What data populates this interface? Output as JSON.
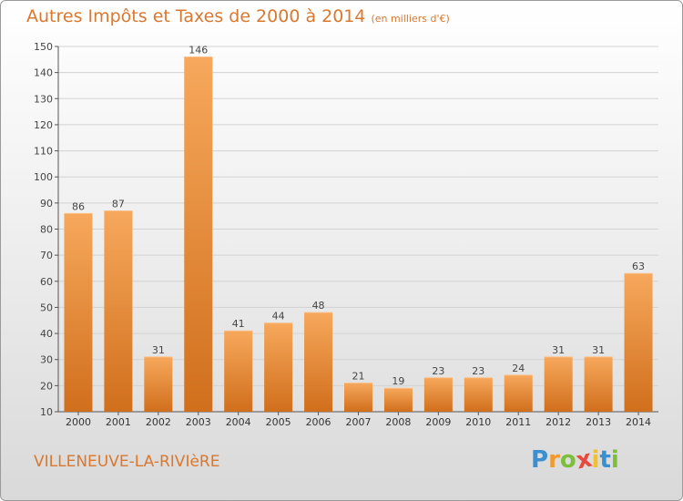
{
  "header": {
    "title": "Autres Impôts et Taxes de 2000 à 2014",
    "subtitle": "(en milliers d'€)"
  },
  "footer": {
    "city": "VILLENEUVE-LA-RIVIèRE",
    "logo_letters": [
      "P",
      "r",
      "o",
      "x",
      "i",
      "t",
      "i"
    ],
    "logo_colors": [
      "#3a8fd0",
      "#f29a2e",
      "#7dbf3c",
      "#e8493c",
      "#f2c02e",
      "#3a8fd0",
      "#7dbf3c"
    ]
  },
  "colors": {
    "bar_light": "#f7a85c",
    "bar_dark": "#d06f1c",
    "text": "#d9782e"
  },
  "chart_data": {
    "type": "bar",
    "title": "Autres Impôts et Taxes de 2000 à 2014",
    "subtitle": "(en milliers d'€)",
    "categories": [
      "2000",
      "2001",
      "2002",
      "2003",
      "2004",
      "2005",
      "2006",
      "2007",
      "2008",
      "2009",
      "2010",
      "2011",
      "2012",
      "2013",
      "2014"
    ],
    "values": [
      86,
      87,
      31,
      146,
      41,
      44,
      48,
      21,
      19,
      23,
      23,
      24,
      31,
      31,
      63
    ],
    "ylim": [
      10,
      150
    ],
    "yticks": [
      10,
      20,
      30,
      40,
      50,
      60,
      70,
      80,
      90,
      100,
      110,
      120,
      130,
      140,
      150
    ],
    "grid": true,
    "legend": "none"
  }
}
